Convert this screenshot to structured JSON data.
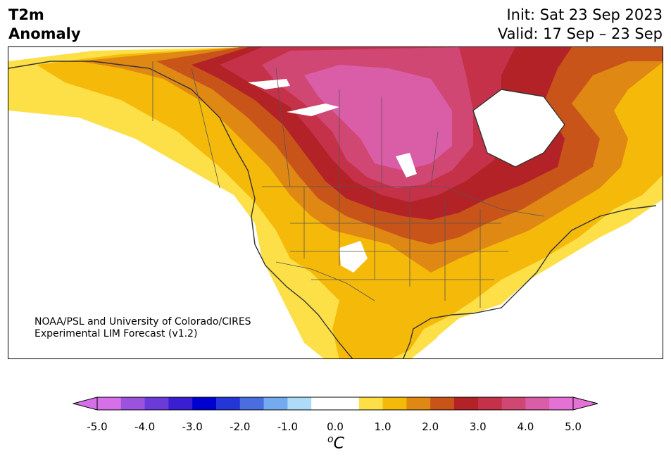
{
  "header": {
    "title_line1": "T2m",
    "title_line2": "Anomaly",
    "init_text": "Init: Sat 23 Sep 2023",
    "valid_text": "Valid: 17 Sep – 23 Sep"
  },
  "map": {
    "region": "North America",
    "credit_line1": "NOAA/PSL and University of Colorado/CIRES",
    "credit_line2": "Experimental LIM Forecast (v1.2)"
  },
  "colorbar": {
    "unit_base": "C",
    "unit_sup": "o",
    "tick_labels": [
      "-5.0",
      "-4.0",
      "-3.0",
      "-2.0",
      "-1.0",
      "0.0",
      "1.0",
      "2.0",
      "3.0",
      "4.0",
      "5.0"
    ],
    "colors": [
      "#d570e8",
      "#9b52dc",
      "#6b3bd9",
      "#3a1fd2",
      "#0000d0",
      "#2437d6",
      "#4a6ee0",
      "#74aaf0",
      "#aedcf8",
      "#ffffff",
      "#ffffff",
      "#fde047",
      "#f5b90a",
      "#df8813",
      "#c8541a",
      "#b22226",
      "#c53149",
      "#cf4772",
      "#da5ea7",
      "#e671d5"
    ],
    "under_color": "#d570e8",
    "over_color": "#e671d5"
  }
}
